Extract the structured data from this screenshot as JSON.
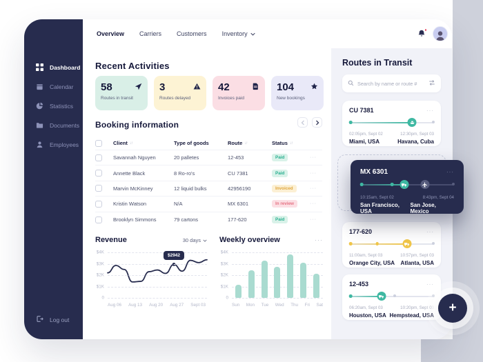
{
  "icons": {
    "dots": "···",
    "sort": "↓↑",
    "plus": "+"
  },
  "colors": {
    "navy": "#272c4e",
    "teal": "#3fb8a2",
    "yellow": "#f0c64a",
    "panel_bg": "#f1f2f8",
    "badge_paid": "#27ae8f",
    "badge_invoiced": "#dfa63e",
    "badge_review": "#e57384",
    "notification_dot": "#e8506a"
  },
  "header": {
    "tabs": [
      {
        "label": "Overview"
      },
      {
        "label": "Carriers"
      },
      {
        "label": "Customers"
      },
      {
        "label": "Inventory"
      }
    ]
  },
  "sidebar": {
    "items": [
      {
        "label": "Dashboard"
      },
      {
        "label": "Calendar"
      },
      {
        "label": "Statistics"
      },
      {
        "label": "Documents"
      },
      {
        "label": "Employees"
      }
    ],
    "logout_label": "Log out"
  },
  "recent_activities": {
    "title": "Recent Activities",
    "cards": [
      {
        "value": "58",
        "label": "Routes in transit",
        "icon": "navigation-icon",
        "bg": "#d9efe7"
      },
      {
        "value": "3",
        "label": "Routes delayed",
        "icon": "warning-icon",
        "bg": "#fdf3d4"
      },
      {
        "value": "42",
        "label": "Invoices paid",
        "icon": "invoice-icon",
        "bg": "#fbdee4"
      },
      {
        "value": "104",
        "label": "New bookings",
        "icon": "star-icon",
        "bg": "#e9e9f8"
      }
    ]
  },
  "booking": {
    "title": "Booking information",
    "columns": {
      "client": "Client",
      "goods": "Type of goods",
      "route": "Route",
      "status": "Status"
    },
    "rows": [
      {
        "client": "Savannah Nguyen",
        "goods": "20 palletes",
        "route": "12-453",
        "status": "Paid",
        "status_type": "paid"
      },
      {
        "client": "Annette Black",
        "goods": "8 Ro-ro's",
        "route": "CU 7381",
        "status": "Paid",
        "status_type": "paid"
      },
      {
        "client": "Marvin McKinney",
        "goods": "12 liquid bulks",
        "route": "42956190",
        "status": "Invoiced",
        "status_type": "invoiced"
      },
      {
        "client": "Kristin Watson",
        "goods": "N/A",
        "route": "MX 6301",
        "status": "In review",
        "status_type": "review"
      },
      {
        "client": "Brooklyn Simmons",
        "goods": "79 cartons",
        "route": "177-620",
        "status": "Paid",
        "status_type": "paid"
      }
    ]
  },
  "revenue": {
    "title": "Revenue",
    "range_label": "30 days",
    "tooltip": "$2942"
  },
  "weekly": {
    "title": "Weekly overview"
  },
  "chart_data": [
    {
      "type": "line",
      "title": "Revenue",
      "x": [
        "Aug 06",
        "Aug 13",
        "Aug 20",
        "Aug 27",
        "Sept 03"
      ],
      "y_ticks": [
        "$4K",
        "$3K",
        "$2K",
        "$1K",
        "0"
      ],
      "ylim": [
        0,
        4000
      ],
      "values": [
        2200,
        2850,
        2500,
        1400,
        1450,
        2300,
        2450,
        2150,
        2942,
        2350,
        3300,
        3100,
        3350
      ],
      "annotated_point": {
        "index": 8,
        "label": "$2942"
      },
      "grid": "dashed-horizontal",
      "line_color": "#272c4e"
    },
    {
      "type": "bar",
      "title": "Weekly overview",
      "categories": [
        "Sun",
        "Mon",
        "Tue",
        "Wed",
        "Thu",
        "Fri",
        "Sat"
      ],
      "values": [
        1150,
        2450,
        3300,
        2750,
        3800,
        3100,
        2150
      ],
      "y_ticks": [
        "$4K",
        "$3K",
        "$2K",
        "$1K",
        "0"
      ],
      "ylim": [
        0,
        4000
      ],
      "grid": "dashed-horizontal",
      "bar_color": "#a9dbd0"
    }
  ],
  "routes_panel": {
    "title": "Routes in Transit",
    "search_placeholder": "Search by name or route #",
    "cards": [
      {
        "id": "CU 7381",
        "from_time": "02:05pm, Sept 02",
        "from": "Miami, USA",
        "to_time": "12:30pm, Sept 03",
        "to": "Havana, Cuba",
        "fill": "74%",
        "marker": "74%"
      },
      {
        "id": "MX 6301",
        "from_time": "10:15am, Sept 02",
        "from": "San Francisco, USA",
        "to_time": "8:43pm, Sept 04",
        "to": "San Jose, Mexico",
        "fill": "47%",
        "waypoint": "34%",
        "marker": "47%",
        "marker2": "69%"
      },
      {
        "id": "177-620",
        "from_time": "11:00am, Sept 03",
        "from": "Orange City, USA",
        "to_time": "10:57pm, Sept 03",
        "to": "Atlanta, USA",
        "fill": "68%",
        "waypoint": "33%",
        "marker": "68%"
      },
      {
        "id": "12-453",
        "from_time": "06:20am, Sept 03",
        "from": "Houston, USA",
        "to_time": "10:20pm, Sept 03",
        "to": "Hempstead, USA",
        "fill": "38%",
        "marker": "38%",
        "waypoint": "54%"
      }
    ]
  }
}
